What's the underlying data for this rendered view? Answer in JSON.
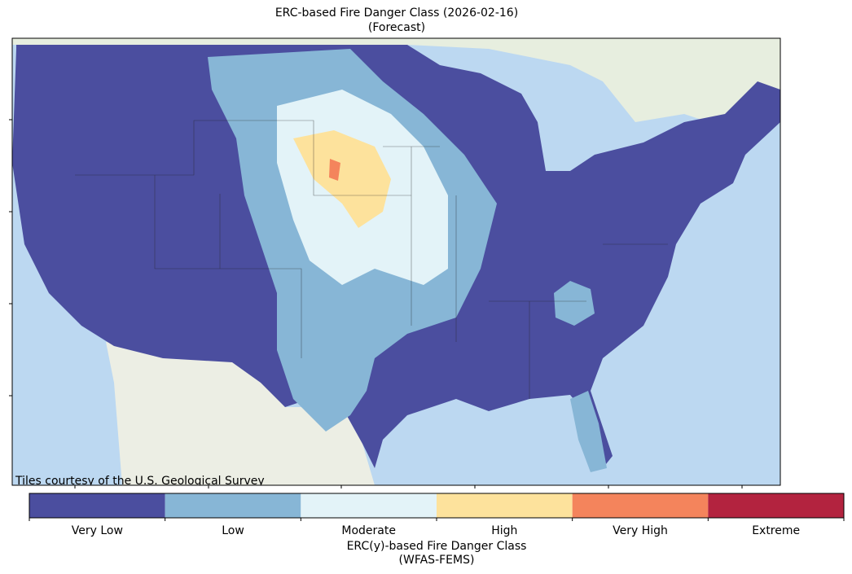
{
  "map": {
    "title": "ERC-based Fire Danger Class (2026-02-16)",
    "subtitle": "(Forecast)",
    "attribution": "Tiles courtesy of the U.S. Geological Survey"
  },
  "colorbar": {
    "classes": [
      {
        "label": "Very Low",
        "color": "#4b4e9f"
      },
      {
        "label": "Low",
        "color": "#87b6d6"
      },
      {
        "label": "Moderate",
        "color": "#e3f3f8"
      },
      {
        "label": "High",
        "color": "#fde29c"
      },
      {
        "label": "Very High",
        "color": "#f4845c"
      },
      {
        "label": "Extreme",
        "color": "#b3233f"
      }
    ],
    "label": "ERC(y)-based Fire Danger Class",
    "sublabel": "(WFAS-FEMS)"
  }
}
